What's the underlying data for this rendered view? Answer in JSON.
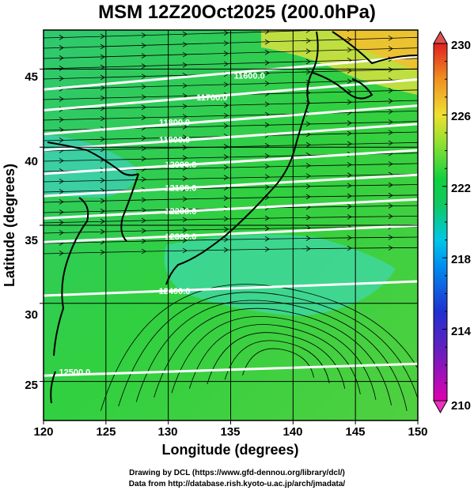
{
  "title": "MSM 12Z20Oct2025 (200.0hPa)",
  "axes": {
    "xlabel": "Longitude (degrees)",
    "ylabel": "Latitude  (degrees)",
    "xticks": [
      "120",
      "125",
      "130",
      "135",
      "140",
      "145",
      "150"
    ],
    "yticks": [
      "25",
      "30",
      "35",
      "40",
      "45"
    ]
  },
  "colorbar": {
    "labels": [
      "230",
      "226",
      "222",
      "218",
      "214",
      "210"
    ]
  },
  "contour_labels": [
    "11600.0",
    "11700.0",
    "11800.0",
    "11900.0",
    "12000.0",
    "12100.0",
    "12200.0",
    "12300.0",
    "12400.0",
    "12500.0"
  ],
  "credits": {
    "line1": "Drawing by DCL (https://www.gfd-dennou.org/library/dcl/)",
    "line2": "Data from http://database.rish.kyoto-u.ac.jp/arch/jmadata/"
  },
  "chart_data": {
    "type": "heatmap",
    "title": "MSM 12Z20Oct2025 (200.0hPa)",
    "xlabel": "Longitude (degrees)",
    "ylabel": "Latitude  (degrees)",
    "xlim": [
      120,
      150
    ],
    "ylim": [
      22.5,
      47.5
    ],
    "x_ticks": [
      120,
      125,
      130,
      135,
      140,
      145,
      150
    ],
    "y_ticks": [
      25,
      30,
      35,
      40,
      45
    ],
    "grid": true,
    "colorbar": {
      "min": 210,
      "max": 230,
      "ticks": [
        210,
        214,
        218,
        222,
        226,
        230
      ],
      "colors": [
        "#e000b0",
        "#2030d0",
        "#00b8ff",
        "#10d040",
        "#f0e030",
        "#e02020"
      ]
    },
    "contours": [
      {
        "label": "11600.0",
        "lon": 136.5,
        "lat": 44.6
      },
      {
        "label": "11700.0",
        "lon": 133.5,
        "lat": 43.2
      },
      {
        "label": "11800.0",
        "lon": 130.5,
        "lat": 41.6
      },
      {
        "label": "11900.0",
        "lon": 130.5,
        "lat": 40.5
      },
      {
        "label": "12000.0",
        "lon": 131.0,
        "lat": 38.9
      },
      {
        "label": "12100.0",
        "lon": 131.0,
        "lat": 37.4
      },
      {
        "label": "12200.0",
        "lon": 131.0,
        "lat": 35.9
      },
      {
        "label": "12300.0",
        "lon": 131.0,
        "lat": 34.3
      },
      {
        "label": "12400.0",
        "lon": 130.5,
        "lat": 30.8
      },
      {
        "label": "12500.0",
        "lon": 122.5,
        "lat": 25.6
      }
    ]
  }
}
